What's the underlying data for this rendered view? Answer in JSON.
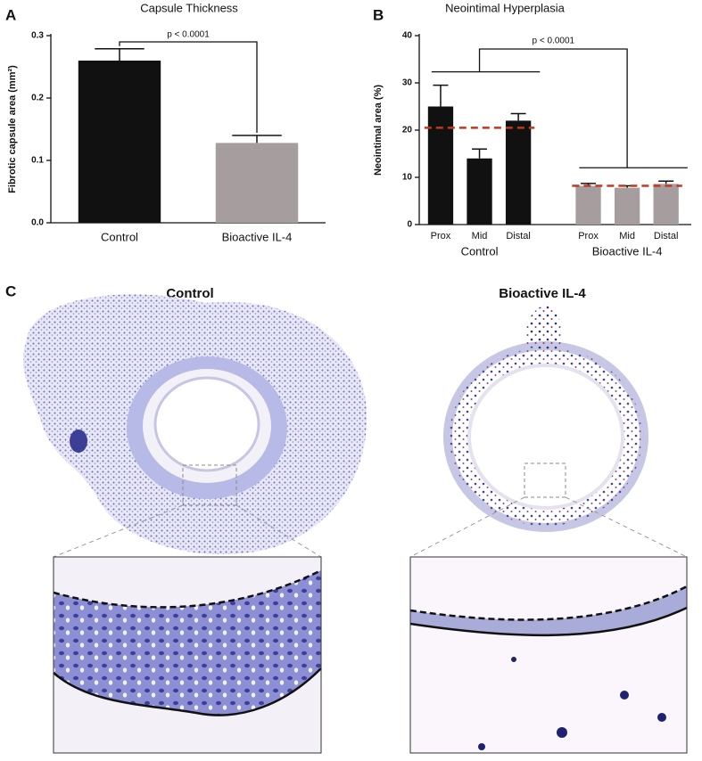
{
  "chart_data": [
    {
      "type": "bar",
      "panel_label": "A",
      "title": "Capsule Thickness",
      "ylabel": "Fibrotic capsule area (mm²)",
      "categories": [
        "Control",
        "Bioactive IL-4"
      ],
      "values": [
        0.26,
        0.128
      ],
      "errors": [
        0.019,
        0.012
      ],
      "colors": [
        "#111111",
        "#a69e9e"
      ],
      "ylim": [
        0,
        0.3
      ],
      "yticks": [
        {
          "value": 0,
          "label": "0.0"
        },
        0.1,
        0.2,
        0.3
      ],
      "annotation": "p < 0.0001"
    },
    {
      "type": "grouped_bar",
      "panel_label": "B",
      "title": "Neointimal Hyperplasia",
      "ylabel": "Neointimal area (%)",
      "groups": [
        "Control",
        "Bioactive IL-4"
      ],
      "categories": [
        "Prox",
        "Mid",
        "Distal",
        "Prox",
        "Mid",
        "Distal"
      ],
      "values": [
        25,
        14,
        22,
        8.2,
        7.8,
        8.6
      ],
      "errors": [
        4.5,
        2,
        1.5,
        0.5,
        0.4,
        0.6
      ],
      "colors": [
        "#111111",
        "#111111",
        "#111111",
        "#a69e9e",
        "#a69e9e",
        "#a69e9e"
      ],
      "group_means": [
        20.5,
        8.2
      ],
      "mean_color": "#c0391b",
      "ylim": [
        0,
        40
      ],
      "yticks": [
        0,
        10,
        20,
        30,
        40
      ],
      "annotation": "p < 0.0001"
    }
  ],
  "panel_c": {
    "label": "C",
    "left_title": "Control",
    "right_title": "Bioactive IL-4"
  }
}
